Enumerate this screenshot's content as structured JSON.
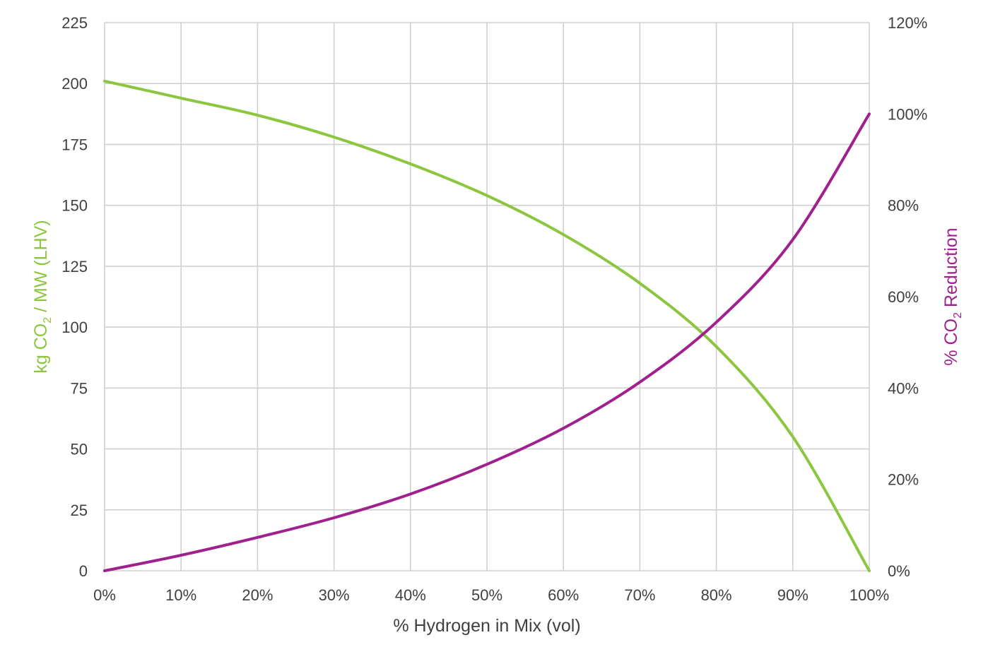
{
  "chart_data": {
    "type": "line",
    "xlabel": "% Hydrogen in Mix (vol)",
    "ylabel_left": {
      "prefix": "kg CO",
      "sub": "2",
      "suffix": " / MW (LHV)"
    },
    "ylabel_right": {
      "prefix": "% CO",
      "sub": "2",
      "suffix": " Reduction"
    },
    "x_ticks": [
      "0%",
      "10%",
      "20%",
      "30%",
      "40%",
      "50%",
      "60%",
      "70%",
      "80%",
      "90%",
      "100%"
    ],
    "y_left_ticks": [
      "0",
      "25",
      "50",
      "75",
      "100",
      "125",
      "150",
      "175",
      "200",
      "225"
    ],
    "y_right_ticks": [
      "0%",
      "20%",
      "40%",
      "60%",
      "80%",
      "100%",
      "120%"
    ],
    "xlim": [
      0,
      100
    ],
    "ylim_left": [
      0,
      225
    ],
    "ylim_right": [
      0,
      120
    ],
    "grid": true,
    "x": [
      0,
      10,
      20,
      30,
      40,
      50,
      60,
      70,
      80,
      90,
      100
    ],
    "series": [
      {
        "axis": "left",
        "color": "#8cc63f",
        "values": [
          201,
          194,
          187,
          178,
          167,
          154,
          138,
          118,
          92,
          55,
          0
        ]
      },
      {
        "axis": "right",
        "color": "#a0208e",
        "values": [
          0,
          3.4,
          7.3,
          11.6,
          16.8,
          23.3,
          31.2,
          41.3,
          54.4,
          72.5,
          100
        ]
      }
    ],
    "colors": {
      "left_axis_title": "#8cc63f",
      "right_axis_title": "#a0208e",
      "tick_text": "#404040",
      "grid": "#d0d0d0"
    }
  }
}
